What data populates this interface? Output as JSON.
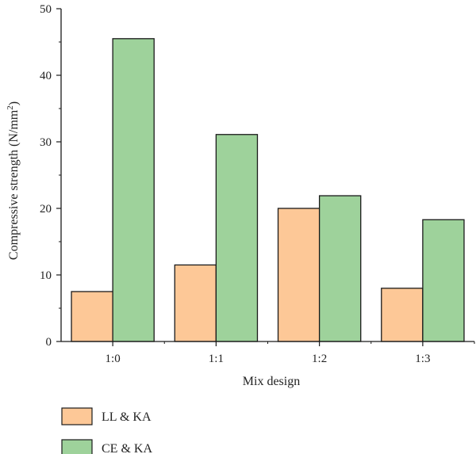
{
  "chart_data": {
    "type": "bar",
    "xlabel": "Mix design",
    "ylabel": "Compressive strength (N/mm",
    "ylabel_sup": "2",
    "ylabel_end": ")",
    "ylim": [
      0,
      50
    ],
    "yticks": [
      0,
      10,
      20,
      30,
      40,
      50
    ],
    "categories": [
      "1:0",
      "1:1",
      "1:2",
      "1:3"
    ],
    "series": [
      {
        "name": "LL & KA",
        "color": "#fdc897",
        "values": [
          7.5,
          11.5,
          20.0,
          8.0
        ]
      },
      {
        "name": "CE & KA",
        "color": "#9ed29b",
        "values": [
          45.5,
          31.1,
          21.9,
          18.3
        ]
      }
    ],
    "legend_position": "bottom-left",
    "grid": false
  }
}
